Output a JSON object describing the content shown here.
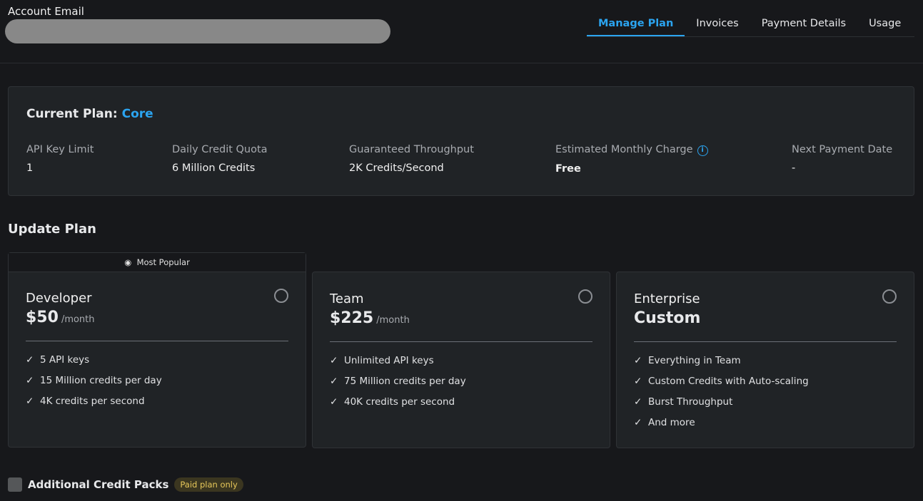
{
  "header": {
    "email_label": "Account Email",
    "tabs": [
      "Manage Plan",
      "Invoices",
      "Payment Details",
      "Usage"
    ],
    "active_tab": "Manage Plan"
  },
  "current_plan": {
    "title": "Current Plan:",
    "plan_name": "Core",
    "stats": [
      {
        "label": "API Key Limit",
        "value": "1"
      },
      {
        "label": "Daily Credit Quota",
        "value": "6 Million Credits"
      },
      {
        "label": "Guaranteed Throughput",
        "value": "2K Credits/Second"
      },
      {
        "label": "Estimated Monthly Charge",
        "value": "Free"
      },
      {
        "label": "Next Payment Date",
        "value": "-"
      }
    ]
  },
  "update_plan": {
    "title": "Update Plan",
    "popular_label": "Most Popular",
    "plans": [
      {
        "name": "Developer",
        "price": "$50",
        "period": "/month",
        "features": [
          "5 API keys",
          "15 Million credits per day",
          "4K credits per second"
        ]
      },
      {
        "name": "Team",
        "price": "$225",
        "period": "/month",
        "features": [
          "Unlimited API keys",
          "75 Million credits per day",
          "40K credits per second"
        ]
      },
      {
        "name": "Enterprise",
        "price": "Custom",
        "period": "",
        "features": [
          "Everything in Team",
          "Custom Credits with Auto-scaling",
          "Burst Throughput",
          "And more"
        ]
      }
    ]
  },
  "additional": {
    "label": "Additional Credit Packs",
    "badge": "Paid plan only"
  },
  "colors": {
    "accent": "#2ba4f0",
    "background": "#17181b",
    "card": "#202326",
    "badge_text": "#e7c85a"
  }
}
